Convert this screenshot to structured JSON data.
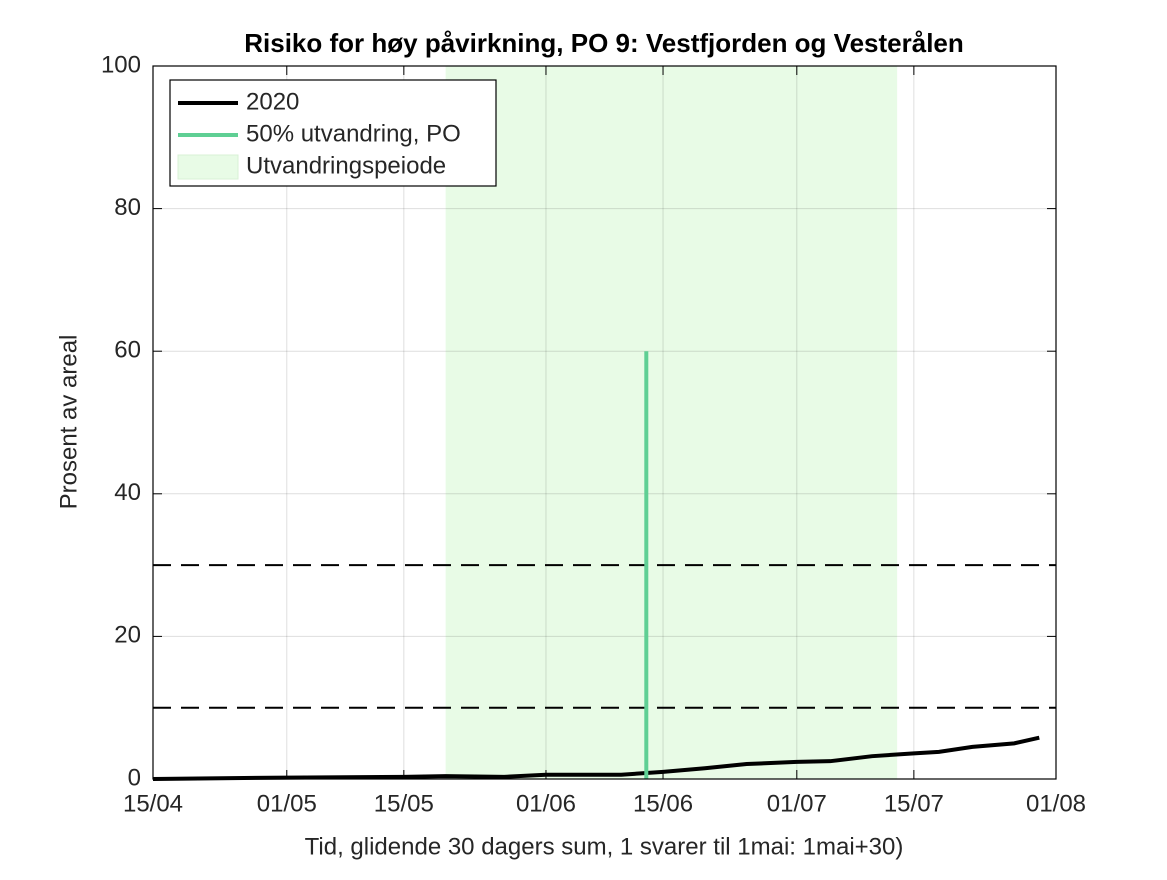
{
  "chart_data": {
    "type": "line",
    "title": "Risiko for høy påvirkning, PO 9: Vestfjorden og Vesterålen",
    "x_label": "Tid, glidende 30 dagers sum, 1 svarer til 1mai: 1mai+30)",
    "y_label": "Prosent av areal",
    "xlim": [
      "15/04",
      "01/08"
    ],
    "xticks": [
      "15/04",
      "01/05",
      "15/05",
      "01/06",
      "15/06",
      "01/07",
      "15/07",
      "01/08"
    ],
    "ylim": [
      0,
      100
    ],
    "yticks": [
      0,
      20,
      40,
      60,
      80,
      100
    ],
    "grid": true,
    "legend": "upper left",
    "series": [
      {
        "name": "2020",
        "color": "#000000",
        "x": [
          "15/04",
          "01/05",
          "15/05",
          "20/05",
          "27/05",
          "01/06",
          "10/06",
          "15/06",
          "20/06",
          "25/06",
          "01/07",
          "05/07",
          "10/07",
          "15/07",
          "18/07",
          "22/07",
          "27/07",
          "30/07"
        ],
        "values": [
          0,
          0.2,
          0.3,
          0.4,
          0.3,
          0.6,
          0.6,
          1.0,
          1.5,
          2.1,
          2.4,
          2.5,
          3.2,
          3.6,
          3.8,
          4.5,
          5.0,
          5.8
        ]
      },
      {
        "name": "50% utvandring, PO",
        "color": "#5fcf94",
        "x": [
          "13/06",
          "13/06"
        ],
        "values": [
          0,
          60
        ]
      }
    ],
    "spans": [
      {
        "name": "Utvandringspeiode",
        "color": "#e8fbe6",
        "x": [
          "20/05",
          "13/07"
        ]
      }
    ],
    "hlines": [
      10,
      30
    ]
  }
}
